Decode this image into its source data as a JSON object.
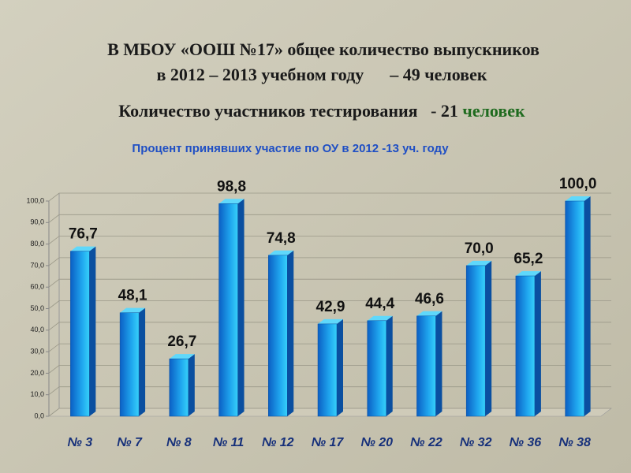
{
  "header": {
    "line1": "В МБОУ «ООШ №17» общее количество выпускников",
    "line2": "в 2012 – 2013 учебном году      – 49 человек",
    "line3": "Количество участников тестирования   - 21",
    "line3_accent": "человек"
  },
  "chart_data": {
    "type": "bar3d",
    "title": "Процент принявших участие по ОУ в 2012 -13 уч. году",
    "categories": [
      "№ 3",
      "№ 7",
      "№ 8",
      "№ 11",
      "№ 12",
      "№ 17",
      "№ 20",
      "№ 22",
      "№ 32",
      "№ 36",
      "№ 38"
    ],
    "values": [
      76.7,
      48.1,
      26.7,
      98.8,
      74.8,
      42.9,
      44.4,
      46.6,
      70.0,
      65.2,
      100.0
    ],
    "value_labels": [
      "76,7",
      "48,1",
      "26,7",
      "98,8",
      "74,8",
      "42,9",
      "44,4",
      "46,6",
      "70,0",
      "65,2",
      "100,0"
    ],
    "color": "#1a8fe6",
    "ylim": [
      0,
      100
    ],
    "yticks": [
      {
        "value": 0,
        "label": "0,0"
      },
      {
        "value": 10,
        "label": "10,0"
      },
      {
        "value": 20,
        "label": "20,0"
      },
      {
        "value": 30,
        "label": "30,0"
      },
      {
        "value": 40,
        "label": "40,0"
      },
      {
        "value": 50,
        "label": "50,0"
      },
      {
        "value": 60,
        "label": "60,0"
      },
      {
        "value": 70,
        "label": "70,0"
      },
      {
        "value": 80,
        "label": "80,0"
      },
      {
        "value": 90,
        "label": "90,0"
      },
      {
        "value": 100,
        "label": "100,0"
      }
    ],
    "grid": true
  }
}
